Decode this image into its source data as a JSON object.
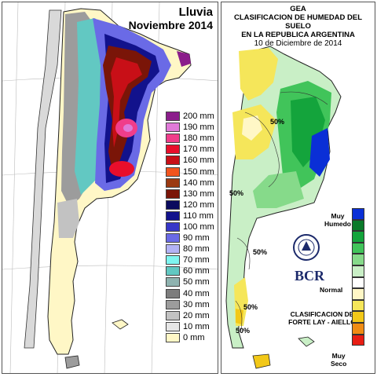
{
  "left_map": {
    "title_line1": "Lluvia",
    "title_line2": "Noviembre 2014",
    "legend": [
      {
        "label": "200 mm",
        "color": "#8b1e8b"
      },
      {
        "label": "190 mm",
        "color": "#e07ad8"
      },
      {
        "label": "180 mm",
        "color": "#f03d8a"
      },
      {
        "label": "170 mm",
        "color": "#e80e2b"
      },
      {
        "label": "160 mm",
        "color": "#c80f17"
      },
      {
        "label": "150 mm",
        "color": "#f2551e"
      },
      {
        "label": "140 mm",
        "color": "#9b3a12"
      },
      {
        "label": "130 mm",
        "color": "#7a1508"
      },
      {
        "label": "120 mm",
        "color": "#0a0a5e"
      },
      {
        "label": "110 mm",
        "color": "#12128c"
      },
      {
        "label": "100 mm",
        "color": "#3737c8"
      },
      {
        "label": "90 mm",
        "color": "#6a6ae6"
      },
      {
        "label": "80 mm",
        "color": "#b3b3f5"
      },
      {
        "label": "70 mm",
        "color": "#7ff5f0"
      },
      {
        "label": "60 mm",
        "color": "#62c8c2"
      },
      {
        "label": "50 mm",
        "color": "#8fb3b0"
      },
      {
        "label": "40 mm",
        "color": "#7d7d7d"
      },
      {
        "label": "30 mm",
        "color": "#9c9c9c"
      },
      {
        "label": "20 mm",
        "color": "#c2c2c2"
      },
      {
        "label": "10 mm",
        "color": "#e6e6e6"
      },
      {
        "label": "0 mm",
        "color": "#fff7c6"
      }
    ]
  },
  "right_map": {
    "org": "GEA",
    "title_line1": "CLASIFICACION DE HUMEDAD DEL SUELO",
    "title_line2": "EN LA REPUBLICA ARGENTINA",
    "date": "10 de Diciembre de 2014",
    "logo_text": "BCR",
    "method_line1": "CLASIFICACION DE",
    "method_line2": "FORTE LAY - AIELLO",
    "legend_top_label_line1": "Muy",
    "legend_top_label_line2": "Humedo",
    "legend_mid_label": "Normal",
    "legend_bottom_label_line1": "Muy",
    "legend_bottom_label_line2": "Seco",
    "contour_labels": [
      "50%",
      "50%",
      "50%",
      "50%",
      "50%"
    ],
    "legend_colors": [
      "#0a2fd6",
      "#0a7a2a",
      "#14a43c",
      "#41c45a",
      "#86da8a",
      "#c9efc6",
      "#ffffff",
      "#fff7c6",
      "#f5e65a",
      "#f2c818",
      "#f08c14",
      "#e81e14"
    ]
  }
}
